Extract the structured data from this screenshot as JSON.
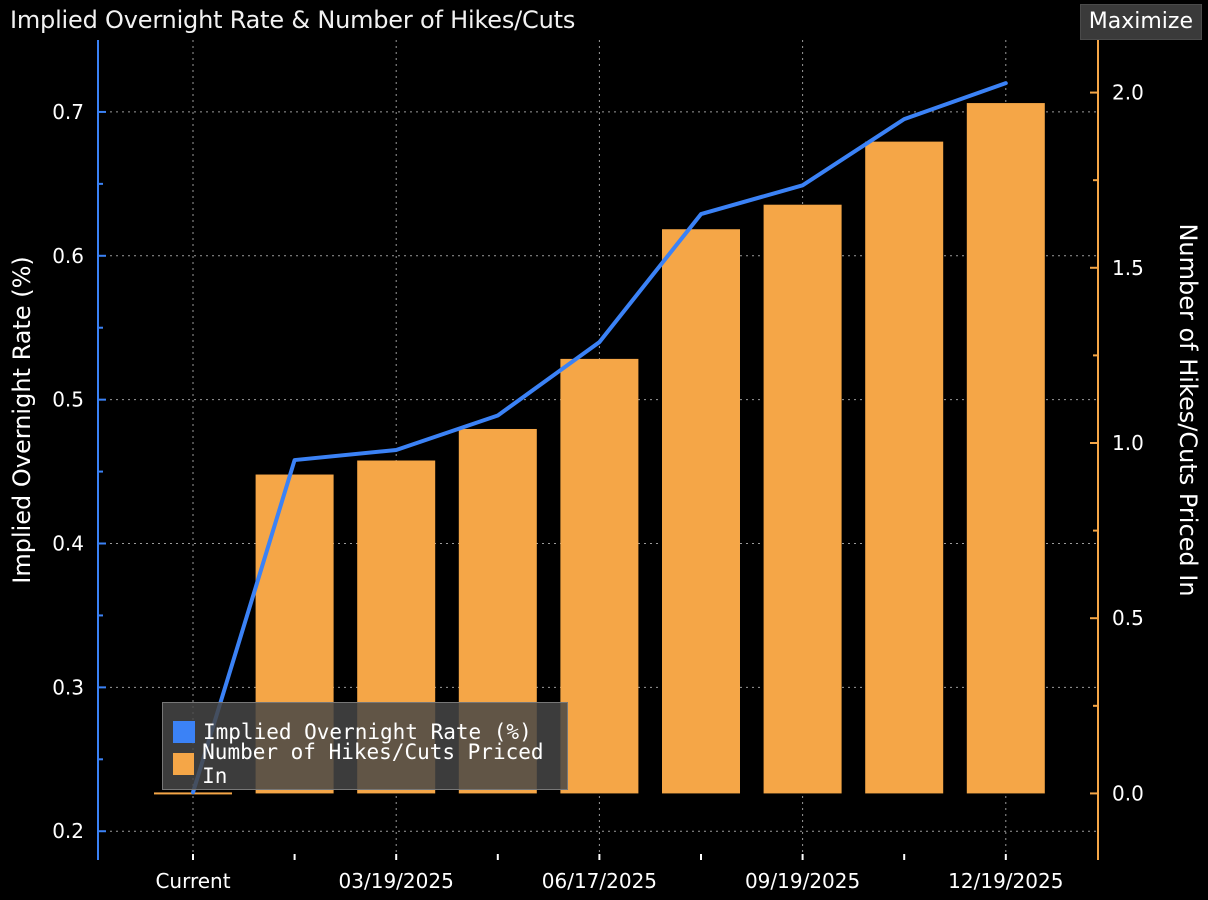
{
  "header": {
    "title": "Implied Overnight Rate & Number of Hikes/Cuts",
    "maximize_label": "Maximize"
  },
  "colors": {
    "background": "#000000",
    "rate_line": "#3b82f6",
    "bars": "#f5a647",
    "grid": "#9a9a9a"
  },
  "chart_data": {
    "type": "bar",
    "title": "Implied Overnight Rate & Number of Hikes/Cuts",
    "x_tick_labels": [
      "Current",
      "03/19/2025",
      "06/17/2025",
      "09/19/2025",
      "12/19/2025"
    ],
    "ylabel_left": "Implied Overnight Rate (%)",
    "ylabel_right": "Number of Hikes/Cuts Priced In",
    "ylim_left": [
      0.18,
      0.75
    ],
    "ylim_right": [
      -0.19,
      2.15
    ],
    "yticks_left": [
      "0.2",
      "0.3",
      "0.4",
      "0.5",
      "0.6",
      "0.7"
    ],
    "yticks_right": [
      "0.0",
      "0.5",
      "1.0",
      "1.5",
      "2.0"
    ],
    "grid": true,
    "legend_position": "bottom-left",
    "series": [
      {
        "name": "Implied Overnight Rate (%)",
        "type": "line",
        "axis": "left",
        "values": [
          0.227,
          0.458,
          0.465,
          0.489,
          0.54,
          0.629,
          0.649,
          0.695,
          0.72
        ]
      },
      {
        "name": "Number of Hikes/Cuts Priced In",
        "type": "bar",
        "axis": "right",
        "values": [
          0.0,
          0.91,
          0.95,
          1.04,
          1.24,
          1.61,
          1.68,
          1.86,
          1.97
        ]
      }
    ]
  }
}
